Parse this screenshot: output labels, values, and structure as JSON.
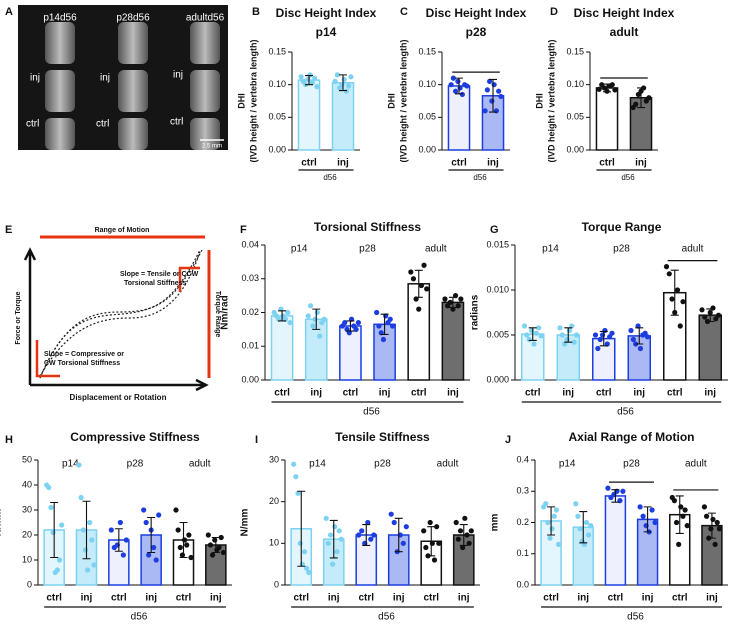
{
  "panel_labels": [
    "A",
    "B",
    "C",
    "D",
    "E",
    "F",
    "G",
    "H",
    "I",
    "J"
  ],
  "image": {
    "columns": [
      "p14d56",
      "p28d56",
      "adultd56"
    ],
    "rows": [
      "inj",
      "ctrl"
    ],
    "scale_bar": "2.5 mm"
  },
  "schematic": {
    "range_of_motion": "Range of Motion",
    "torque_range": "Torque Range",
    "y_axis": "Force or Torque",
    "x_axis": "Displacement or Rotation",
    "tensile": [
      "Slope = Tensile or CCW",
      "Torsional Stiffness"
    ],
    "compressive": [
      "Slope = Compressive or",
      "CW Torsional Stiffness"
    ]
  },
  "chart_data": [
    {
      "type": "bar",
      "title": "Disc Height Index",
      "subtitle": "p14",
      "ylabel": [
        "DHI",
        "(IVD height / vertebra length)"
      ],
      "categories": [
        "ctrl",
        "inj"
      ],
      "xgroup_label": "d56",
      "values": [
        0.107,
        0.103
      ],
      "errors": [
        0.007,
        0.012
      ],
      "points": [
        [
          0.112,
          0.105,
          0.1,
          0.108,
          0.115,
          0.103,
          0.11,
          0.097
        ],
        [
          0.105,
          0.115,
          0.095,
          0.1,
          0.108,
          0.09,
          0.098,
          0.112
        ]
      ],
      "colors": [
        "#e4f6fd",
        "#c3ebfa"
      ],
      "edge_colors": [
        "#7dd2f2",
        "#7dd2f2"
      ],
      "point_colors": [
        "#7dd2f2",
        "#7dd2f2"
      ],
      "ylim": [
        0,
        0.15
      ],
      "yticks": [
        {
          "value": 0,
          "label": "0.00"
        },
        0.05,
        {
          "value": 0.1,
          "label": "0.10"
        },
        0.15
      ],
      "significance": []
    },
    {
      "type": "bar",
      "title": "Disc Height Index",
      "subtitle": "p28",
      "ylabel": [
        "DHI",
        "(IVD height / vertebra length)"
      ],
      "categories": [
        "ctrl",
        "inj"
      ],
      "xgroup_label": "d56",
      "values": [
        0.098,
        0.083
      ],
      "errors": [
        0.012,
        0.025
      ],
      "points": [
        [
          0.1,
          0.11,
          0.09,
          0.105,
          0.095,
          0.085,
          0.1,
          0.098
        ],
        [
          0.06,
          0.092,
          0.105,
          0.075,
          0.1,
          0.06,
          0.09,
          0.082
        ]
      ],
      "colors": [
        "#eef1fd",
        "#aab9f3"
      ],
      "edge_colors": [
        "#1c3de0",
        "#1c3de0"
      ],
      "point_colors": [
        "#1c3de0",
        "#1c3de0"
      ],
      "ylim": [
        0,
        0.15
      ],
      "yticks": [
        {
          "value": 0,
          "label": "0.00"
        },
        0.05,
        {
          "value": 0.1,
          "label": "0.10"
        },
        0.15
      ],
      "significance": [
        [
          0,
          1
        ]
      ]
    },
    {
      "type": "bar",
      "title": "Disc Height Index",
      "subtitle": "adult",
      "ylabel": [
        "DHI",
        "(IVD height / vertebra length)"
      ],
      "categories": [
        "ctrl",
        "inj"
      ],
      "xgroup_label": "d56",
      "values": [
        0.095,
        0.08
      ],
      "errors": [
        0.006,
        0.015
      ],
      "points": [
        [
          0.093,
          0.1,
          0.095,
          0.09,
          0.098,
          0.1,
          0.092
        ],
        [
          0.065,
          0.07,
          0.085,
          0.09,
          0.095,
          0.075,
          0.08
        ]
      ],
      "colors": [
        "#ffffff",
        "#6e6e6e"
      ],
      "edge_colors": [
        "#111111",
        "#111111"
      ],
      "point_colors": [
        "#111111",
        "#111111"
      ],
      "ylim": [
        0,
        0.15
      ],
      "yticks": [
        {
          "value": 0,
          "label": "0.00"
        },
        0.05,
        {
          "value": 0.1,
          "label": "0.10"
        },
        0.15
      ],
      "significance": [
        [
          0,
          1
        ]
      ]
    },
    {
      "type": "bar",
      "title": "Torsional Stiffness",
      "groups": [
        "p14",
        "p28",
        "adult"
      ],
      "ylabel": "Nm/rad",
      "categories": [
        "ctrl",
        "inj",
        "ctrl",
        "inj",
        "ctrl",
        "inj"
      ],
      "xgroup_label": "d56",
      "values": [
        0.019,
        0.018,
        0.016,
        0.0165,
        0.0285,
        0.023
      ],
      "errors": [
        0.0015,
        0.003,
        0.0015,
        0.003,
        0.004,
        0.0015
      ],
      "points": [
        [
          0.02,
          0.019,
          0.018,
          0.021,
          0.019,
          0.018,
          0.02,
          0.017
        ],
        [
          0.019,
          0.022,
          0.016,
          0.018,
          0.02,
          0.013,
          0.017,
          0.018
        ],
        [
          0.016,
          0.017,
          0.015,
          0.014,
          0.018,
          0.016,
          0.015,
          0.017
        ],
        [
          0.02,
          0.016,
          0.014,
          0.012,
          0.019,
          0.017,
          0.018,
          0.016
        ],
        [
          0.032,
          0.03,
          0.024,
          0.021,
          0.028,
          0.034,
          0.027
        ],
        [
          0.024,
          0.022,
          0.023,
          0.021,
          0.025,
          0.022,
          0.024
        ]
      ],
      "colors": [
        "#e4f6fd",
        "#c3ebfa",
        "#eef1fd",
        "#aab9f3",
        "#ffffff",
        "#6e6e6e"
      ],
      "edge_colors": [
        "#7dd2f2",
        "#7dd2f2",
        "#1c3de0",
        "#1c3de0",
        "#111111",
        "#111111"
      ],
      "point_colors": [
        "#7dd2f2",
        "#7dd2f2",
        "#1c3de0",
        "#1c3de0",
        "#111111",
        "#111111"
      ],
      "ylim": [
        0,
        0.04
      ],
      "yticks": [
        {
          "value": 0,
          "label": "0.00"
        },
        0.01,
        0.02,
        0.03,
        0.04
      ],
      "significance": []
    },
    {
      "type": "bar",
      "title": "Torque Range",
      "groups": [
        "p14",
        "p28",
        "adult"
      ],
      "ylabel": "radians",
      "categories": [
        "ctrl",
        "inj",
        "ctrl",
        "inj",
        "ctrl",
        "inj"
      ],
      "xgroup_label": "d56",
      "values": [
        0.0051,
        0.005,
        0.0046,
        0.0049,
        0.0097,
        0.0072
      ],
      "errors": [
        0.0007,
        0.0008,
        0.0008,
        0.0009,
        0.0025,
        0.0007
      ],
      "points": [
        [
          0.006,
          0.005,
          0.0045,
          0.0055,
          0.004,
          0.0052,
          0.0058,
          0.0049
        ],
        [
          0.0058,
          0.005,
          0.004,
          0.0045,
          0.0055,
          0.006,
          0.0042,
          0.005
        ],
        [
          0.005,
          0.0035,
          0.0045,
          0.005,
          0.0055,
          0.004,
          0.0048,
          0.0052
        ],
        [
          0.0055,
          0.0045,
          0.004,
          0.006,
          0.0035,
          0.005,
          0.0052,
          0.0048
        ],
        [
          0.0126,
          0.0118,
          0.009,
          0.0075,
          0.01,
          0.006,
          0.0087
        ],
        [
          0.0078,
          0.007,
          0.0065,
          0.0075,
          0.008,
          0.0068,
          0.0072
        ]
      ],
      "colors": [
        "#e4f6fd",
        "#c3ebfa",
        "#eef1fd",
        "#aab9f3",
        "#ffffff",
        "#6e6e6e"
      ],
      "edge_colors": [
        "#7dd2f2",
        "#7dd2f2",
        "#1c3de0",
        "#1c3de0",
        "#111111",
        "#111111"
      ],
      "point_colors": [
        "#7dd2f2",
        "#7dd2f2",
        "#1c3de0",
        "#1c3de0",
        "#111111",
        "#111111"
      ],
      "ylim": [
        0,
        0.015
      ],
      "yticks": [
        {
          "value": 0,
          "label": "0.000"
        },
        0.005,
        {
          "value": 0.01,
          "label": "0.010"
        },
        0.015
      ],
      "significance": [
        [
          4,
          5
        ]
      ]
    },
    {
      "type": "bar",
      "title": "Compressive Stiffness",
      "groups": [
        "p14",
        "p28",
        "adult"
      ],
      "ylabel": "N/mm",
      "categories": [
        "ctrl",
        "inj",
        "ctrl",
        "inj",
        "ctrl",
        "inj"
      ],
      "xgroup_label": "d56",
      "values": [
        22,
        22,
        18,
        20,
        18,
        16
      ],
      "errors": [
        11,
        11.5,
        4.5,
        7,
        7,
        3
      ],
      "points": [
        [
          40,
          39,
          31,
          21,
          5,
          6,
          10,
          24
        ],
        [
          48,
          35,
          22,
          14,
          6,
          25,
          18,
          8
        ],
        [
          22,
          15,
          16,
          25,
          12,
          18
        ],
        [
          30,
          25,
          12,
          22,
          15,
          10,
          28
        ],
        [
          30,
          22,
          15,
          12,
          18,
          16,
          20,
          11
        ],
        [
          20,
          16,
          12,
          18,
          14,
          15,
          19,
          13
        ]
      ],
      "colors": [
        "#e4f6fd",
        "#c3ebfa",
        "#eef1fd",
        "#aab9f3",
        "#ffffff",
        "#6e6e6e"
      ],
      "edge_colors": [
        "#7dd2f2",
        "#7dd2f2",
        "#1c3de0",
        "#1c3de0",
        "#111111",
        "#111111"
      ],
      "point_colors": [
        "#7dd2f2",
        "#7dd2f2",
        "#1c3de0",
        "#1c3de0",
        "#111111",
        "#111111"
      ],
      "ylim": [
        0,
        50
      ],
      "yticks": [
        0,
        10,
        20,
        30,
        40,
        50
      ],
      "significance": []
    },
    {
      "type": "bar",
      "title": "Tensile Stiffness",
      "groups": [
        "p14",
        "p28",
        "adult"
      ],
      "ylabel": "N/mm",
      "categories": [
        "ctrl",
        "inj",
        "ctrl",
        "inj",
        "ctrl",
        "inj"
      ],
      "xgroup_label": "d56",
      "values": [
        13.5,
        11,
        12,
        12,
        10.5,
        12
      ],
      "errors": [
        9,
        4.5,
        2.5,
        4,
        3.5,
        2.5
      ],
      "points": [
        [
          29,
          26,
          22,
          10,
          5,
          8,
          4,
          3
        ],
        [
          16,
          10,
          12,
          5,
          14,
          8,
          13,
          11
        ],
        [
          12,
          13,
          10,
          15,
          11,
          12
        ],
        [
          17,
          15,
          8,
          12,
          10,
          14
        ],
        [
          13,
          9,
          7,
          15,
          10,
          6,
          14,
          10
        ],
        [
          15,
          11,
          13,
          9,
          16,
          12,
          10,
          13
        ]
      ],
      "colors": [
        "#e4f6fd",
        "#c3ebfa",
        "#eef1fd",
        "#aab9f3",
        "#ffffff",
        "#6e6e6e"
      ],
      "edge_colors": [
        "#7dd2f2",
        "#7dd2f2",
        "#1c3de0",
        "#1c3de0",
        "#111111",
        "#111111"
      ],
      "point_colors": [
        "#7dd2f2",
        "#7dd2f2",
        "#1c3de0",
        "#1c3de0",
        "#111111",
        "#111111"
      ],
      "ylim": [
        0,
        30
      ],
      "yticks": [
        0,
        10,
        20,
        30
      ],
      "significance": []
    },
    {
      "type": "bar",
      "title": "Axial Range of Motion",
      "groups": [
        "p14",
        "p28",
        "adult"
      ],
      "ylabel": "mm",
      "categories": [
        "ctrl",
        "inj",
        "ctrl",
        "inj",
        "ctrl",
        "inj"
      ],
      "xgroup_label": "d56",
      "values": [
        0.205,
        0.185,
        0.285,
        0.21,
        0.225,
        0.19
      ],
      "errors": [
        0.045,
        0.05,
        0.02,
        0.04,
        0.06,
        0.04
      ],
      "points": [
        [
          0.25,
          0.26,
          0.2,
          0.15,
          0.18,
          0.22,
          0.24,
          0.13
        ],
        [
          0.26,
          0.22,
          0.18,
          0.14,
          0.13,
          0.2,
          0.16,
          0.19
        ],
        [
          0.31,
          0.28,
          0.29,
          0.3,
          0.27,
          0.3
        ],
        [
          0.25,
          0.22,
          0.19,
          0.17,
          0.24,
          0.2
        ],
        [
          0.28,
          0.27,
          0.2,
          0.13,
          0.25,
          0.22,
          0.24,
          0.19
        ],
        [
          0.25,
          0.22,
          0.15,
          0.18,
          0.21,
          0.13,
          0.2,
          0.18
        ]
      ],
      "colors": [
        "#e4f6fd",
        "#c3ebfa",
        "#eef1fd",
        "#aab9f3",
        "#ffffff",
        "#6e6e6e"
      ],
      "edge_colors": [
        "#7dd2f2",
        "#7dd2f2",
        "#1c3de0",
        "#1c3de0",
        "#111111",
        "#111111"
      ],
      "point_colors": [
        "#7dd2f2",
        "#7dd2f2",
        "#1c3de0",
        "#1c3de0",
        "#111111",
        "#111111"
      ],
      "ylim": [
        0,
        0.4
      ],
      "yticks": [
        {
          "value": 0,
          "label": "0.0"
        },
        0.1,
        0.2,
        0.3,
        0.4
      ],
      "significance": [
        [
          2,
          3
        ],
        [
          4,
          5
        ]
      ]
    }
  ]
}
